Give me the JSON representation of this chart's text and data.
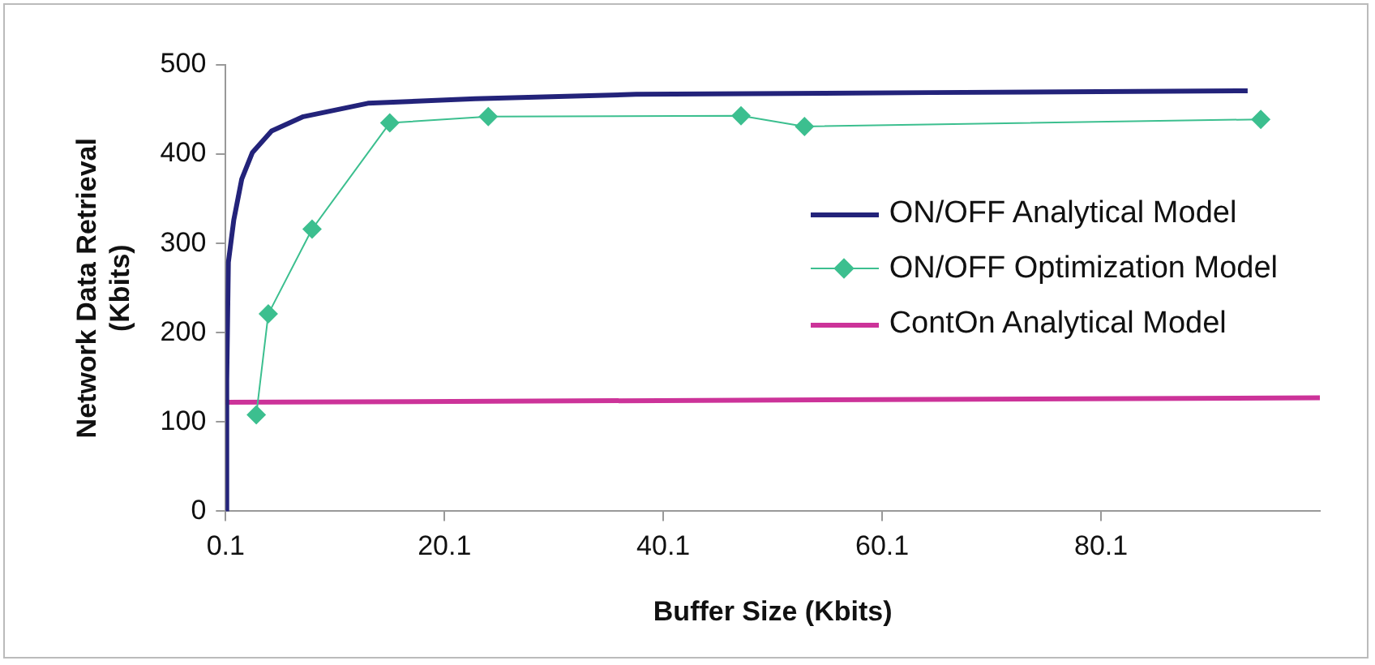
{
  "chart_data": {
    "type": "line",
    "xlabel": "Buffer Size (Kbits)",
    "ylabel": "Network Data Retrieval (Kbits)",
    "xlim": [
      0.1,
      100.1
    ],
    "xticks": [
      0.1,
      20.1,
      40.1,
      60.1,
      80.1
    ],
    "ylim": [
      0,
      500
    ],
    "yticks": [
      0,
      100,
      200,
      300,
      400,
      500
    ],
    "grid": false,
    "legend": "right",
    "series": [
      {
        "name": "ON/OFF Analytical Model",
        "color": "#23237a",
        "marker": "none",
        "x": [
          0.1,
          0.2,
          0.35,
          0.84,
          1.57,
          2.55,
          4.3,
          7.2,
          13.1,
          22.9,
          37.6,
          64.6,
          93.5
        ],
        "values": [
          0,
          146,
          279,
          326,
          372,
          402,
          426,
          442,
          457,
          462,
          467,
          469,
          471
        ]
      },
      {
        "name": "ON/OFF Optimization Model",
        "color": "#3cbf8f",
        "marker": "diamond",
        "x": [
          2.9,
          4.0,
          8.0,
          15.1,
          24.1,
          47.2,
          53.0,
          94.7
        ],
        "values": [
          108,
          221,
          316,
          435,
          442,
          443,
          431,
          439
        ]
      },
      {
        "name": "ContOn Analytical Model",
        "color": "#cc3399",
        "marker": "none",
        "x": [
          0.1,
          100.1
        ],
        "values": [
          122,
          127
        ]
      }
    ]
  }
}
